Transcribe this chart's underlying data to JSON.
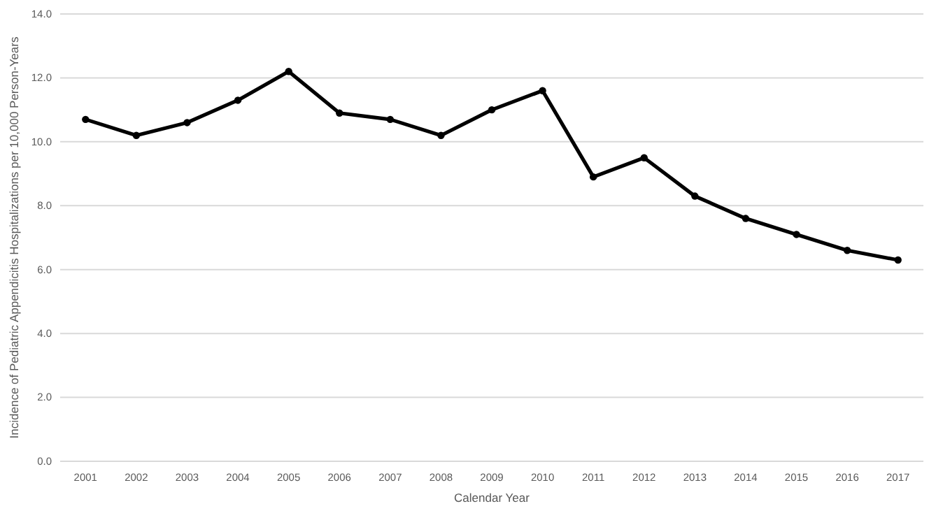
{
  "chart_data": {
    "type": "line",
    "xlabel": "Calendar Year",
    "ylabel": "Incidence of Pediatric Appendicitis Hospitalizations per 10,000 Person-Years",
    "categories": [
      "2001",
      "2002",
      "2003",
      "2004",
      "2005",
      "2006",
      "2007",
      "2008",
      "2009",
      "2010",
      "2011",
      "2012",
      "2013",
      "2014",
      "2015",
      "2016",
      "2017"
    ],
    "series": [
      {
        "color": "#000000",
        "values": [
          10.7,
          10.2,
          10.6,
          11.3,
          12.2,
          10.9,
          10.7,
          10.2,
          11.0,
          11.6,
          8.9,
          9.5,
          8.3,
          7.6,
          7.1,
          6.6,
          6.3
        ]
      }
    ],
    "ylim": [
      0,
      14
    ],
    "yticks": [
      {
        "value": 0,
        "label": "0.0"
      },
      {
        "value": 2,
        "label": "2.0"
      },
      {
        "value": 4,
        "label": "4.0"
      },
      {
        "value": 6,
        "label": "6.0"
      },
      {
        "value": 8,
        "label": "8.0"
      },
      {
        "value": 10,
        "label": "10.0"
      },
      {
        "value": 12,
        "label": "12.0"
      },
      {
        "value": 14,
        "label": "14.0"
      }
    ],
    "grid": "y",
    "marker": "circle",
    "line_style": "solid"
  }
}
